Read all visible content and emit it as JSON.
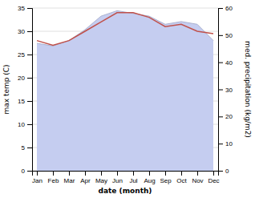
{
  "chart_data": {
    "type": "line",
    "xlabel": "date (month)",
    "ylabel": "max temp (C)",
    "y2label": "med. precipitation (kg/m2)",
    "categories": [
      "Jan",
      "Feb",
      "Mar",
      "Apr",
      "May",
      "Jun",
      "Jul",
      "Aug",
      "Sep",
      "Oct",
      "Nov",
      "Dec"
    ],
    "series": [
      {
        "type": "area",
        "axis": "y2",
        "color": "#c5cdf0",
        "values": [
          47,
          46,
          48,
          52,
          57,
          59,
          58,
          57,
          54,
          55,
          54,
          48
        ]
      },
      {
        "type": "line",
        "color": "#c0514b",
        "values": [
          28,
          27,
          28,
          30,
          32,
          34,
          34,
          33,
          31,
          31.5,
          30,
          29.5
        ]
      }
    ],
    "ylim": [
      0,
      35
    ],
    "yticks": [
      0,
      5,
      10,
      15,
      20,
      25,
      30,
      35
    ],
    "y2lim": [
      0,
      60
    ],
    "y2ticks": [
      0,
      10,
      20,
      30,
      40,
      50,
      60
    ],
    "grid": true
  }
}
